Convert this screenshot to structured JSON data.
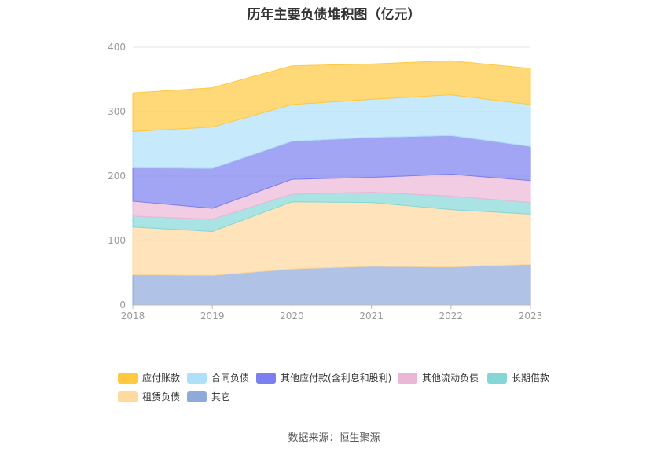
{
  "chart_data": {
    "type": "area",
    "stacked": true,
    "title": "历年主要负债堆积图（亿元）",
    "source": "数据来源：恒生聚源",
    "categories": [
      "2018",
      "2019",
      "2020",
      "2021",
      "2022",
      "2023"
    ],
    "ylim": [
      0,
      400
    ],
    "yticks": [
      "0",
      "100",
      "200",
      "300",
      "400"
    ],
    "grid": true,
    "legend_position": "bottom",
    "series": [
      {
        "name": "其它",
        "color": "#8eaadb",
        "values": [
          47,
          46,
          56,
          60,
          59,
          63
        ]
      },
      {
        "name": "租赁负债",
        "color": "#ffd99e",
        "values": [
          74,
          68,
          104,
          99,
          89,
          78
        ]
      },
      {
        "name": "长期借款",
        "color": "#85d7d7",
        "values": [
          17,
          19,
          12,
          16,
          21,
          18
        ]
      },
      {
        "name": "其他流动负债",
        "color": "#ebb7d7",
        "values": [
          23,
          17,
          23,
          23,
          34,
          34
        ]
      },
      {
        "name": "其他应付款(含利息和股利)",
        "color": "#7b7ff0",
        "values": [
          52,
          62,
          59,
          62,
          60,
          53
        ]
      },
      {
        "name": "合同负债",
        "color": "#aee0fa",
        "values": [
          56,
          64,
          57,
          59,
          63,
          65
        ]
      },
      {
        "name": "应付账款",
        "color": "#ffc93f",
        "values": [
          60,
          61,
          60,
          55,
          53,
          56
        ]
      }
    ],
    "legend_order": [
      "应付账款",
      "合同负债",
      "其他应付款(含利息和股利)",
      "其他流动负债",
      "长期借款",
      "租赁负债",
      "其它"
    ]
  }
}
